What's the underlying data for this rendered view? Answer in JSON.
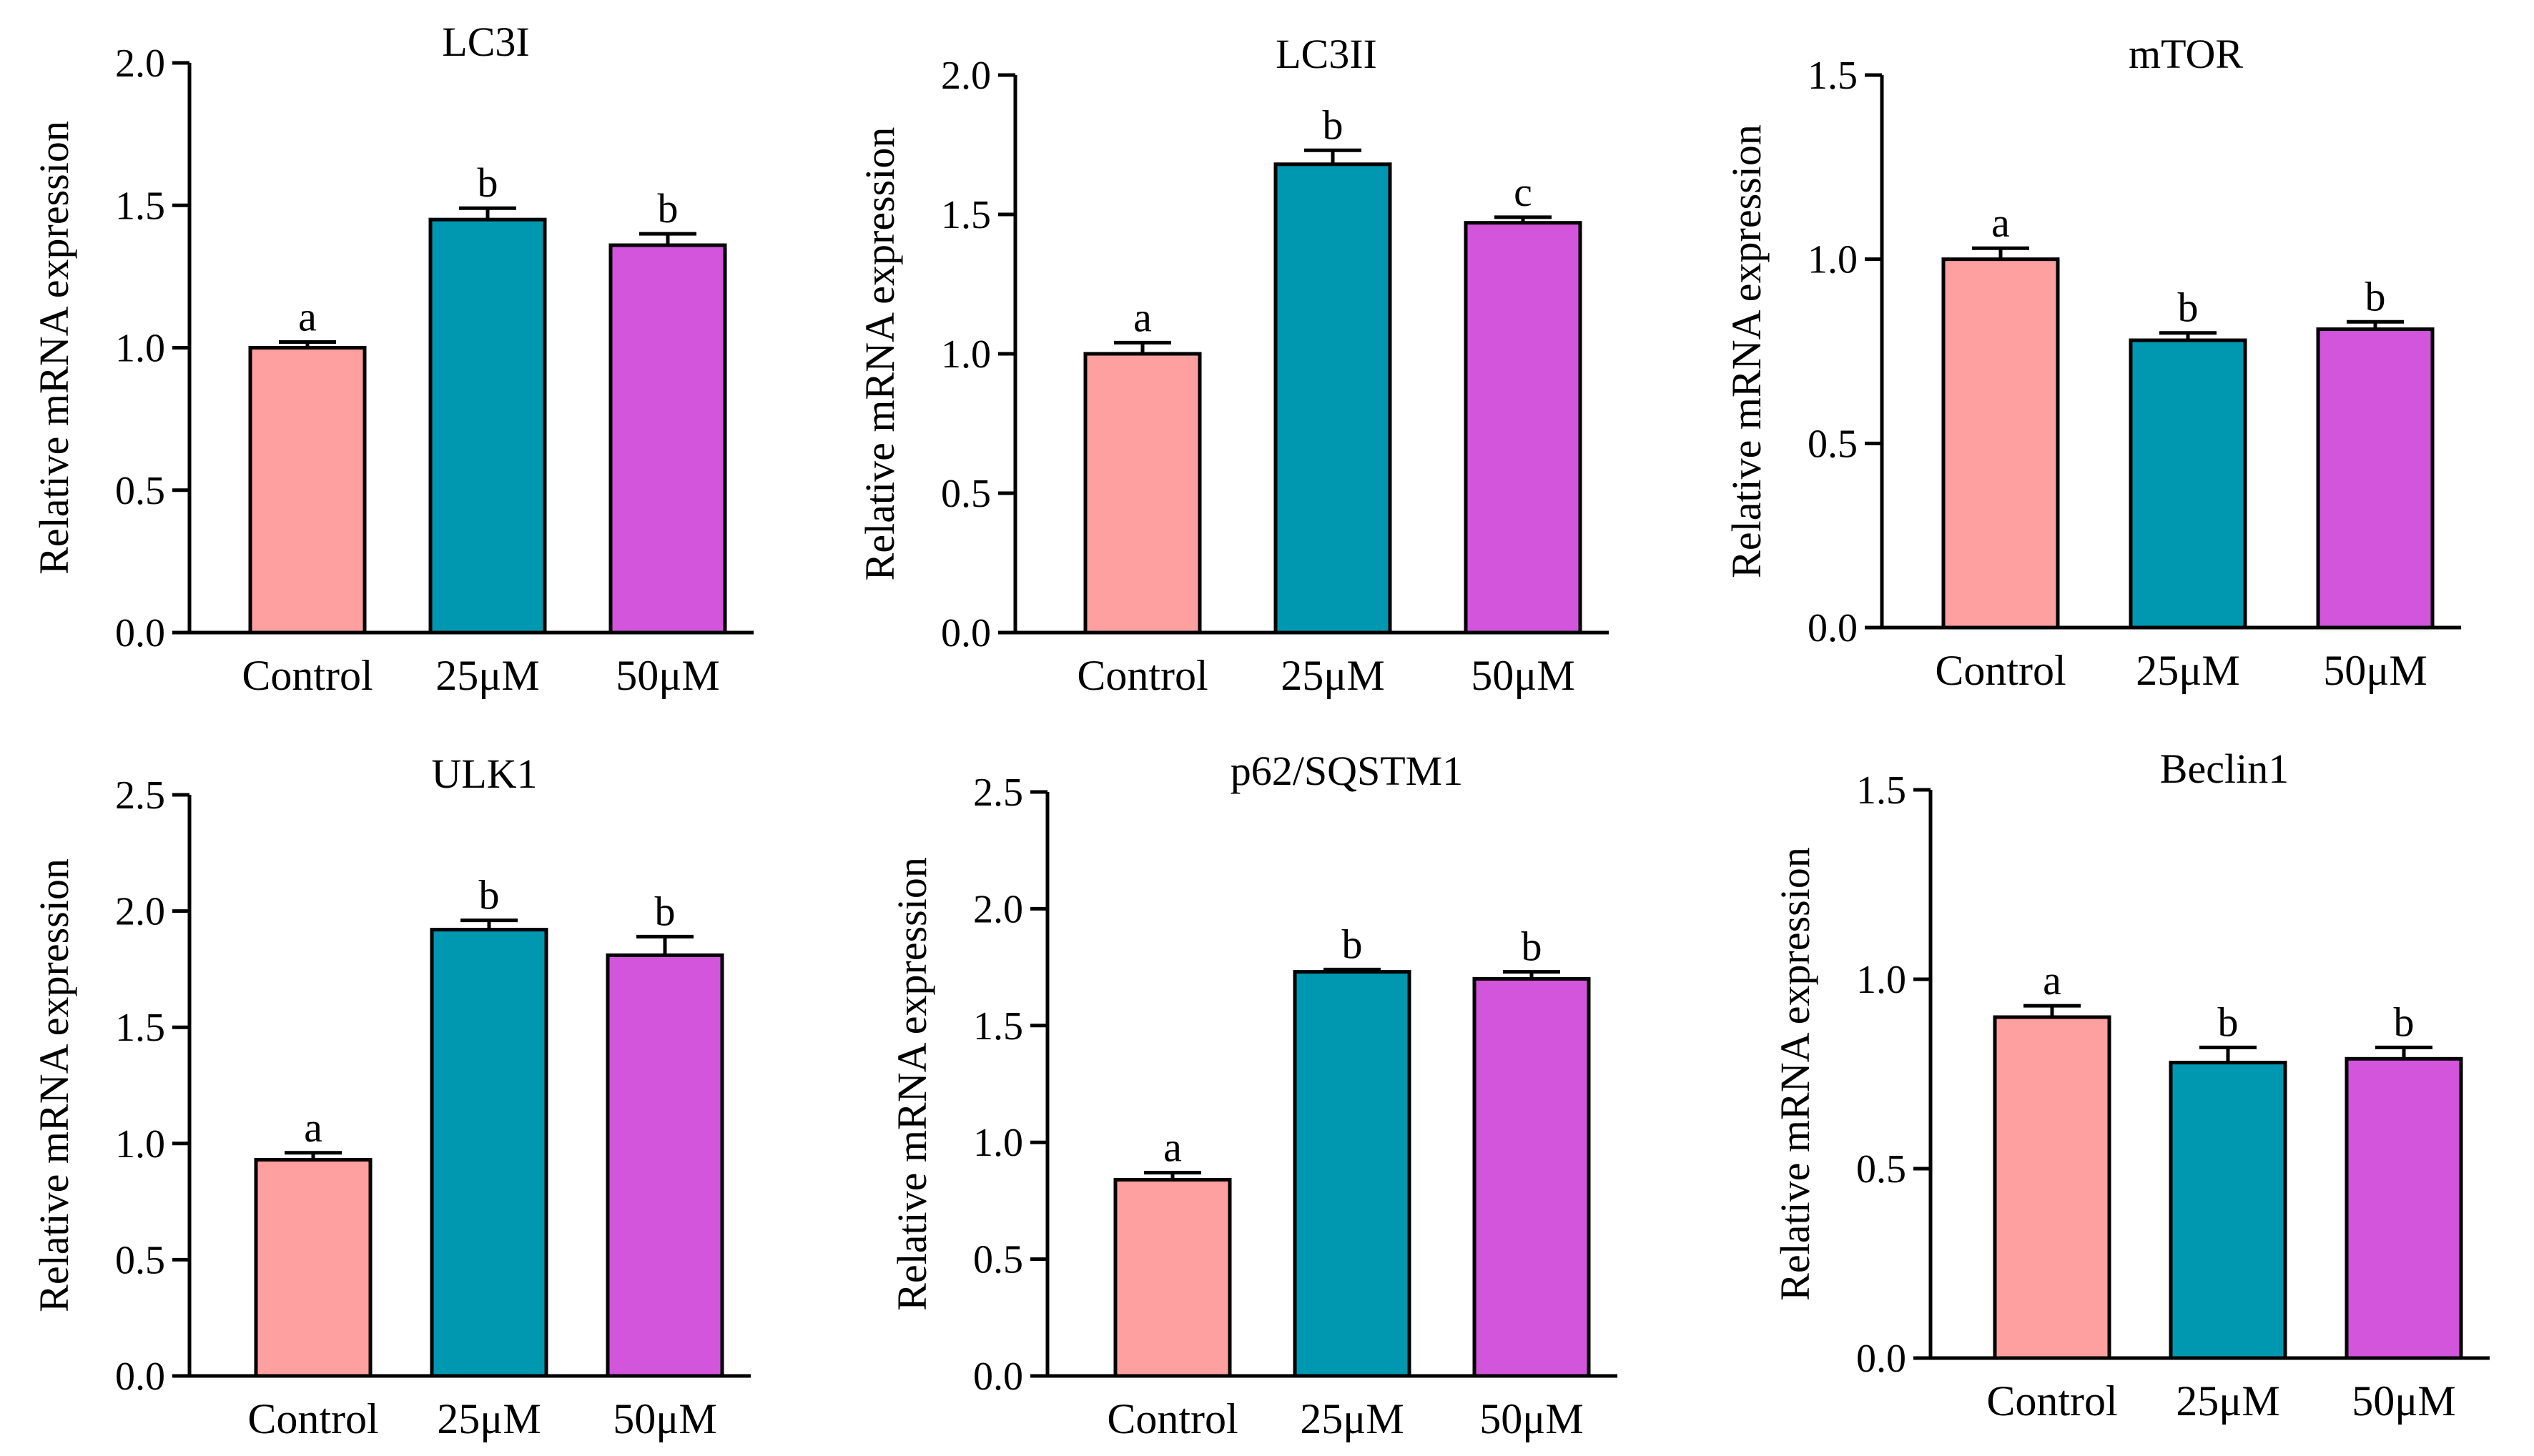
{
  "chart_data": [
    {
      "type": "bar",
      "title": "LC3I",
      "ylabel": "Relative mRNA expression",
      "categories": [
        "Control",
        "25μM",
        "50μM"
      ],
      "values": [
        1.0,
        1.45,
        1.36
      ],
      "errors": [
        0.02,
        0.04,
        0.04
      ],
      "significance": [
        "a",
        "b",
        "b"
      ],
      "ylim": [
        0,
        2.0
      ],
      "yticks": [
        "0.0",
        "0.5",
        "1.0",
        "1.5",
        "2.0"
      ],
      "colors": [
        "#FFA0A0",
        "#0098B0",
        "#D255DC"
      ]
    },
    {
      "type": "bar",
      "title": "LC3II",
      "ylabel": "Relative mRNA expression",
      "categories": [
        "Control",
        "25μM",
        "50μM"
      ],
      "values": [
        1.0,
        1.68,
        1.47
      ],
      "errors": [
        0.04,
        0.05,
        0.02
      ],
      "significance": [
        "a",
        "b",
        "c"
      ],
      "ylim": [
        0,
        2.0
      ],
      "yticks": [
        "0.0",
        "0.5",
        "1.0",
        "1.5",
        "2.0"
      ],
      "colors": [
        "#FFA0A0",
        "#0098B0",
        "#D255DC"
      ]
    },
    {
      "type": "bar",
      "title": "mTOR",
      "ylabel": "Relative mRNA expression",
      "categories": [
        "Control",
        "25μM",
        "50μM"
      ],
      "values": [
        1.0,
        0.78,
        0.81
      ],
      "errors": [
        0.03,
        0.02,
        0.02
      ],
      "significance": [
        "a",
        "b",
        "b"
      ],
      "ylim": [
        0,
        1.5
      ],
      "yticks": [
        "0.0",
        "0.5",
        "1.0",
        "1.5"
      ],
      "colors": [
        "#FFA0A0",
        "#0098B0",
        "#D255DC"
      ]
    },
    {
      "type": "bar",
      "title": "ULK1",
      "ylabel": "Relative mRNA expression",
      "categories": [
        "Control",
        "25μM",
        "50μM"
      ],
      "values": [
        0.93,
        1.92,
        1.81
      ],
      "errors": [
        0.03,
        0.04,
        0.08
      ],
      "significance": [
        "a",
        "b",
        "b"
      ],
      "ylim": [
        0,
        2.5
      ],
      "yticks": [
        "0.0",
        "0.5",
        "1.0",
        "1.5",
        "2.0",
        "2.5"
      ],
      "colors": [
        "#FFA0A0",
        "#0098B0",
        "#D255DC"
      ]
    },
    {
      "type": "bar",
      "title": "p62/SQSTM1",
      "ylabel": "Relative mRNA expression",
      "categories": [
        "Control",
        "25μM",
        "50μM"
      ],
      "values": [
        0.84,
        1.73,
        1.7
      ],
      "errors": [
        0.03,
        0.01,
        0.03
      ],
      "significance": [
        "a",
        "b",
        "b"
      ],
      "ylim": [
        0,
        2.5
      ],
      "yticks": [
        "0.0",
        "0.5",
        "1.0",
        "1.5",
        "2.0",
        "2.5"
      ],
      "colors": [
        "#FFA0A0",
        "#0098B0",
        "#D255DC"
      ]
    },
    {
      "type": "bar",
      "title": "Beclin1",
      "ylabel": "Relative mRNA expression",
      "categories": [
        "Control",
        "25μM",
        "50μM"
      ],
      "values": [
        0.9,
        0.78,
        0.79
      ],
      "errors": [
        0.03,
        0.04,
        0.03
      ],
      "significance": [
        "a",
        "b",
        "b"
      ],
      "ylim": [
        0,
        1.5
      ],
      "yticks": [
        "0.0",
        "0.5",
        "1.0",
        "1.5"
      ],
      "colors": [
        "#FFA0A0",
        "#0098B0",
        "#D255DC"
      ]
    }
  ]
}
